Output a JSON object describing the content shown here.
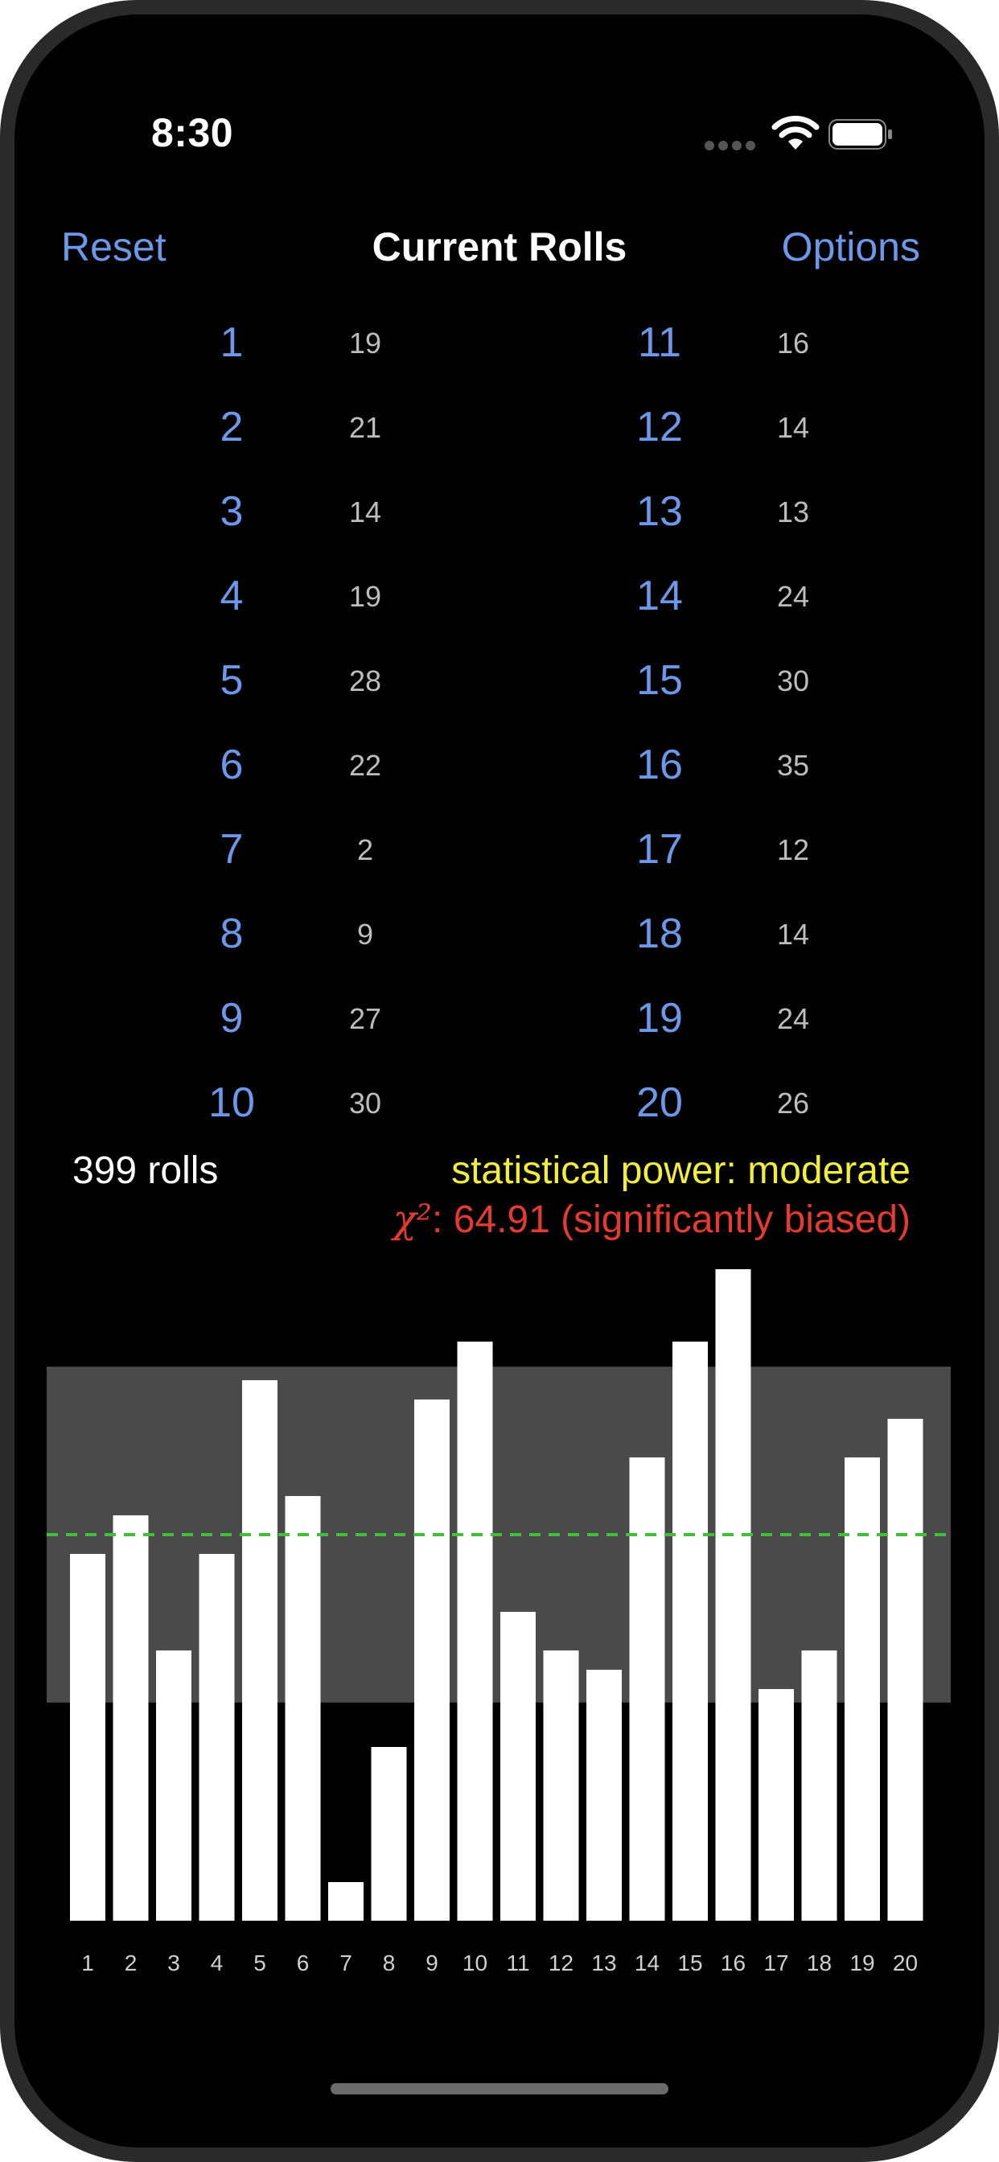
{
  "status_bar": {
    "time": "8:30"
  },
  "nav": {
    "left_label": "Reset",
    "title": "Current Rolls",
    "right_label": "Options"
  },
  "rolls": [
    {
      "face": "1",
      "count": "19"
    },
    {
      "face": "2",
      "count": "21"
    },
    {
      "face": "3",
      "count": "14"
    },
    {
      "face": "4",
      "count": "19"
    },
    {
      "face": "5",
      "count": "28"
    },
    {
      "face": "6",
      "count": "22"
    },
    {
      "face": "7",
      "count": "2"
    },
    {
      "face": "8",
      "count": "9"
    },
    {
      "face": "9",
      "count": "27"
    },
    {
      "face": "10",
      "count": "30"
    },
    {
      "face": "11",
      "count": "16"
    },
    {
      "face": "12",
      "count": "14"
    },
    {
      "face": "13",
      "count": "13"
    },
    {
      "face": "14",
      "count": "24"
    },
    {
      "face": "15",
      "count": "30"
    },
    {
      "face": "16",
      "count": "35"
    },
    {
      "face": "17",
      "count": "12"
    },
    {
      "face": "18",
      "count": "14"
    },
    {
      "face": "19",
      "count": "24"
    },
    {
      "face": "20",
      "count": "26"
    }
  ],
  "summary": {
    "total_rolls": "399 rolls",
    "power": "statistical power: moderate",
    "chi_symbol": "χ²",
    "chi_text": ": 64.91 (significantly biased)"
  },
  "colors": {
    "accent": "#6d97e8",
    "power": "#f2ee3a",
    "biased": "#e53a2f",
    "bar": "#ffffff",
    "band": "#4a4a4a",
    "expected_line": "#3fbf3a"
  },
  "chart_data": {
    "type": "bar",
    "categories": [
      "1",
      "2",
      "3",
      "4",
      "5",
      "6",
      "7",
      "8",
      "9",
      "10",
      "11",
      "12",
      "13",
      "14",
      "15",
      "16",
      "17",
      "18",
      "19",
      "20"
    ],
    "values": [
      19,
      21,
      14,
      19,
      28,
      22,
      2,
      9,
      27,
      30,
      16,
      14,
      13,
      24,
      30,
      35,
      12,
      14,
      24,
      26
    ],
    "expected": 20,
    "band_range": [
      11.3,
      28.7
    ],
    "ylim": [
      0,
      35
    ]
  }
}
